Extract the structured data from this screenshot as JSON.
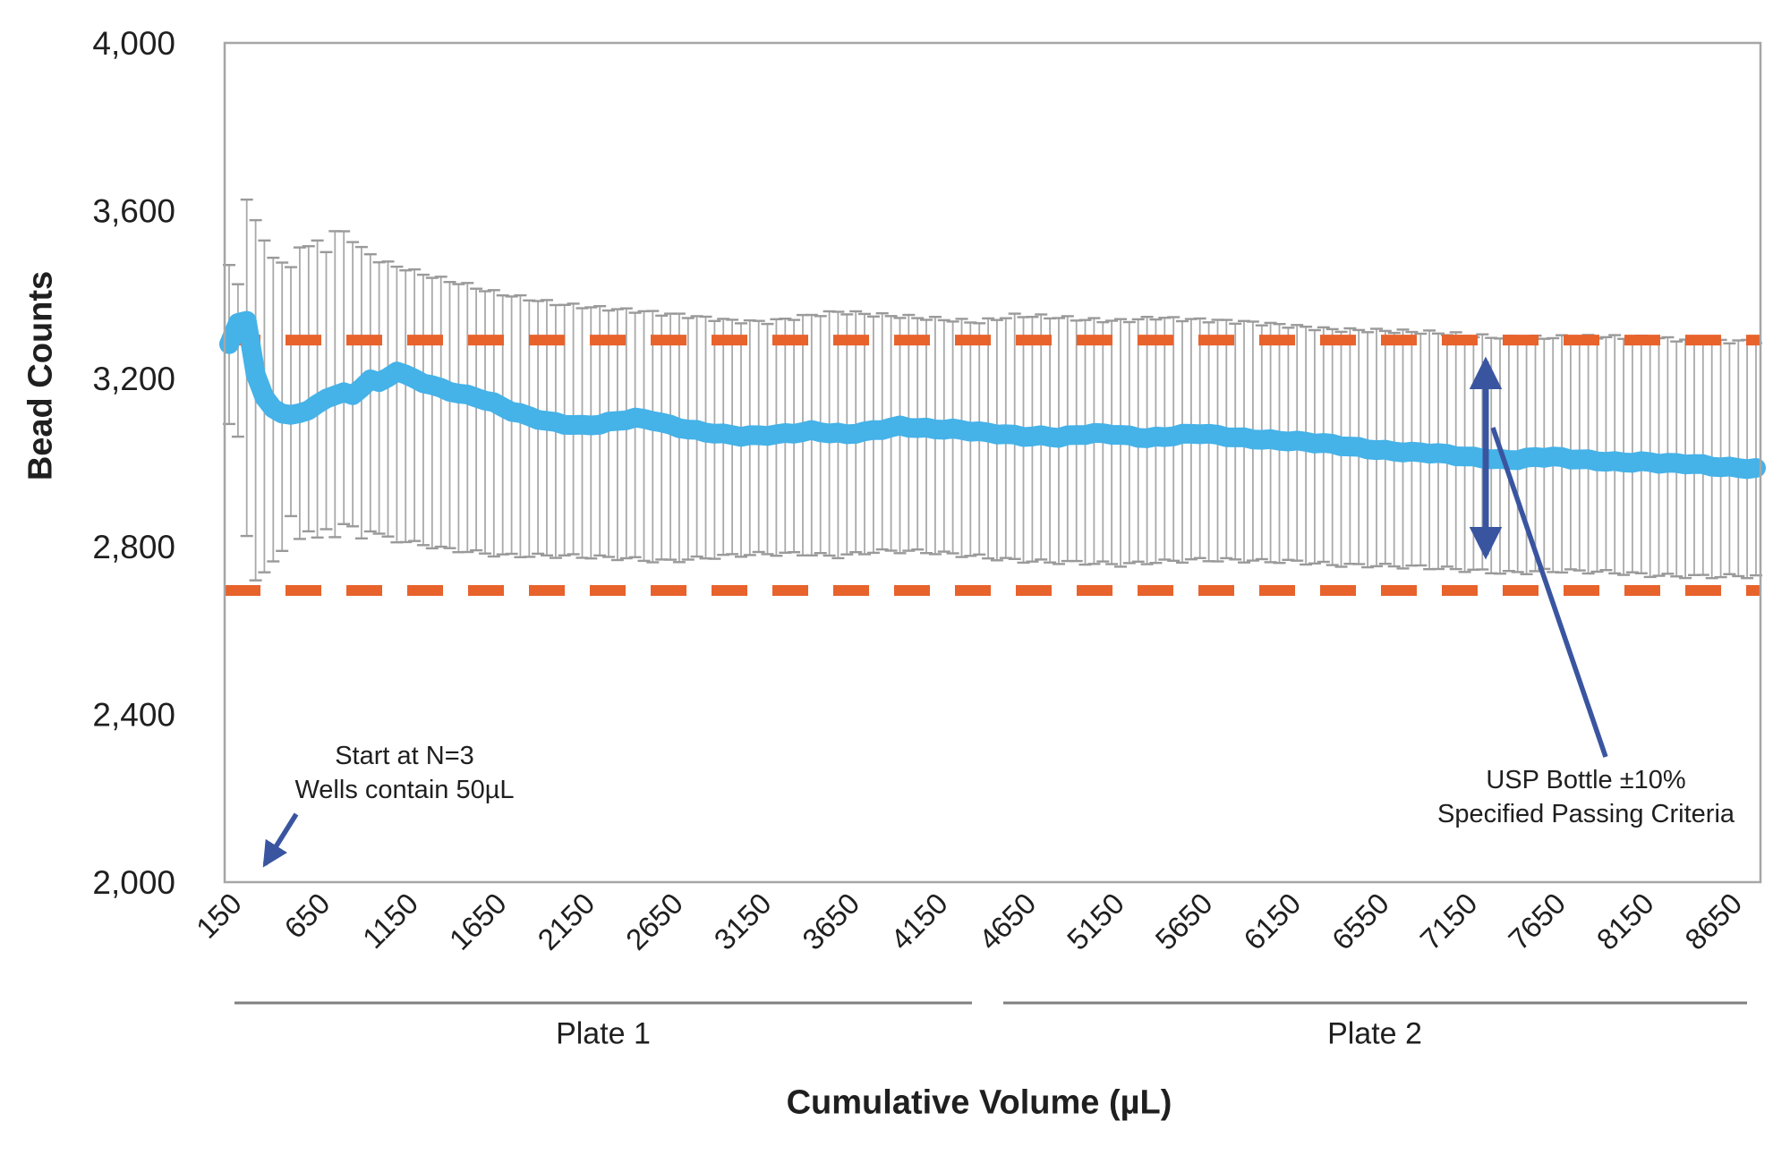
{
  "annotations": {
    "start_note_line1": "Start at N=3",
    "start_note_line2": "Wells contain 50µL",
    "usp_note_line1": "USP Bottle ±10%",
    "usp_note_line2": "Specified Passing Criteria"
  },
  "plates": {
    "plate1": "Plate 1",
    "plate2": "Plate 2"
  },
  "colors": {
    "mean_line": "#45B2E8",
    "limit_line": "#E8622C",
    "error_bar": "#A9A9A9",
    "error_cap": "#9A9A9A",
    "arrow": "#3A55A0",
    "border": "#A6A6A6",
    "text": "#1f1f1f"
  },
  "chart_data": {
    "type": "line",
    "title": "",
    "xlabel": "Cumulative Volume (µL)",
    "ylabel": "Bead Counts",
    "ylim": [
      2000,
      4000
    ],
    "y_tick_values": [
      4000,
      3600,
      3200,
      2800,
      2400,
      2000
    ],
    "y_tick_labels": [
      "4,000",
      "3,600",
      "3,200",
      "2,800",
      "2,400",
      "2,000"
    ],
    "x_tick_labels": [
      "150",
      "650",
      "1150",
      "1650",
      "2150",
      "2650",
      "3150",
      "3650",
      "4150",
      "4650",
      "5150",
      "5650",
      "6150",
      "6550",
      "7150",
      "7650",
      "8150",
      "8650"
    ],
    "x_start": 150,
    "x_step": 50,
    "x_end": 8800,
    "upper_limit": 3292,
    "lower_limit": 2695,
    "grid": false,
    "legend": "none",
    "series": [
      {
        "name": "Mean bead count",
        "anchors": [
          [
            150,
            3282
          ],
          [
            175,
            3252
          ],
          [
            200,
            3330
          ],
          [
            230,
            3355
          ],
          [
            250,
            3338
          ],
          [
            275,
            3285
          ],
          [
            300,
            3210
          ],
          [
            325,
            3172
          ],
          [
            350,
            3152
          ],
          [
            400,
            3128
          ],
          [
            450,
            3118
          ],
          [
            500,
            3112
          ],
          [
            550,
            3118
          ],
          [
            600,
            3128
          ],
          [
            650,
            3140
          ],
          [
            700,
            3152
          ],
          [
            750,
            3163
          ],
          [
            800,
            3168
          ],
          [
            850,
            3158
          ],
          [
            900,
            3178
          ],
          [
            950,
            3198
          ],
          [
            1000,
            3188
          ],
          [
            1050,
            3202
          ],
          [
            1100,
            3218
          ],
          [
            1150,
            3208
          ],
          [
            1250,
            3192
          ],
          [
            1350,
            3178
          ],
          [
            1450,
            3165
          ],
          [
            1550,
            3155
          ],
          [
            1650,
            3140
          ],
          [
            1750,
            3122
          ],
          [
            1850,
            3110
          ],
          [
            1950,
            3100
          ],
          [
            2050,
            3093
          ],
          [
            2150,
            3088
          ],
          [
            2250,
            3090
          ],
          [
            2350,
            3098
          ],
          [
            2450,
            3105
          ],
          [
            2550,
            3102
          ],
          [
            2650,
            3090
          ],
          [
            2750,
            3080
          ],
          [
            2850,
            3072
          ],
          [
            2950,
            3066
          ],
          [
            3050,
            3062
          ],
          [
            3150,
            3064
          ],
          [
            3250,
            3068
          ],
          [
            3350,
            3072
          ],
          [
            3450,
            3076
          ],
          [
            3550,
            3070
          ],
          [
            3650,
            3066
          ],
          [
            3750,
            3072
          ],
          [
            3850,
            3080
          ],
          [
            3950,
            3088
          ],
          [
            4050,
            3084
          ],
          [
            4150,
            3080
          ],
          [
            4250,
            3078
          ],
          [
            4350,
            3074
          ],
          [
            4450,
            3070
          ],
          [
            4550,
            3068
          ],
          [
            4650,
            3064
          ],
          [
            4750,
            3064
          ],
          [
            4850,
            3060
          ],
          [
            4950,
            3064
          ],
          [
            5050,
            3068
          ],
          [
            5150,
            3068
          ],
          [
            5250,
            3064
          ],
          [
            5350,
            3060
          ],
          [
            5450,
            3062
          ],
          [
            5550,
            3066
          ],
          [
            5650,
            3068
          ],
          [
            5750,
            3064
          ],
          [
            5850,
            3060
          ],
          [
            5950,
            3058
          ],
          [
            6050,
            3055
          ],
          [
            6150,
            3052
          ],
          [
            6250,
            3048
          ],
          [
            6350,
            3044
          ],
          [
            6450,
            3040
          ],
          [
            6550,
            3036
          ],
          [
            6650,
            3032
          ],
          [
            6750,
            3028
          ],
          [
            6850,
            3024
          ],
          [
            6950,
            3022
          ],
          [
            7050,
            3018
          ],
          [
            7150,
            3014
          ],
          [
            7250,
            3012
          ],
          [
            7350,
            3008
          ],
          [
            7450,
            3008
          ],
          [
            7550,
            3012
          ],
          [
            7650,
            3012
          ],
          [
            7750,
            3008
          ],
          [
            7850,
            3006
          ],
          [
            7950,
            3004
          ],
          [
            8050,
            3002
          ],
          [
            8150,
            3002
          ],
          [
            8250,
            2998
          ],
          [
            8350,
            2996
          ],
          [
            8450,
            2996
          ],
          [
            8550,
            2992
          ],
          [
            8650,
            2990
          ],
          [
            8800,
            2986
          ]
        ]
      },
      {
        "name": "Upper error bar (+SD)",
        "anchors": [
          [
            150,
            3468
          ],
          [
            200,
            3422
          ],
          [
            250,
            3630
          ],
          [
            300,
            3572
          ],
          [
            350,
            3525
          ],
          [
            400,
            3490
          ],
          [
            450,
            3470
          ],
          [
            500,
            3462
          ],
          [
            550,
            3515
          ],
          [
            600,
            3510
          ],
          [
            650,
            3528
          ],
          [
            700,
            3506
          ],
          [
            750,
            3548
          ],
          [
            800,
            3553
          ],
          [
            850,
            3532
          ],
          [
            900,
            3512
          ],
          [
            950,
            3500
          ],
          [
            1000,
            3484
          ],
          [
            1100,
            3470
          ],
          [
            1200,
            3456
          ],
          [
            1300,
            3442
          ],
          [
            1400,
            3430
          ],
          [
            1500,
            3420
          ],
          [
            1600,
            3408
          ],
          [
            1700,
            3400
          ],
          [
            1800,
            3394
          ],
          [
            1900,
            3388
          ],
          [
            2000,
            3382
          ],
          [
            2200,
            3372
          ],
          [
            2400,
            3362
          ],
          [
            2600,
            3352
          ],
          [
            2800,
            3346
          ],
          [
            3000,
            3340
          ],
          [
            3200,
            3338
          ],
          [
            3400,
            3348
          ],
          [
            3600,
            3356
          ],
          [
            3800,
            3350
          ],
          [
            4000,
            3348
          ],
          [
            4200,
            3344
          ],
          [
            4400,
            3336
          ],
          [
            4600,
            3348
          ],
          [
            4800,
            3344
          ],
          [
            5000,
            3340
          ],
          [
            5200,
            3340
          ],
          [
            5400,
            3348
          ],
          [
            5600,
            3340
          ],
          [
            5800,
            3334
          ],
          [
            6000,
            3330
          ],
          [
            6200,
            3326
          ],
          [
            6400,
            3320
          ],
          [
            6600,
            3316
          ],
          [
            6800,
            3310
          ],
          [
            7000,
            3306
          ],
          [
            7200,
            3302
          ],
          [
            7400,
            3300
          ],
          [
            7600,
            3300
          ],
          [
            7800,
            3298
          ],
          [
            8000,
            3296
          ],
          [
            8200,
            3296
          ],
          [
            8400,
            3294
          ],
          [
            8600,
            3292
          ],
          [
            8800,
            3290
          ]
        ]
      },
      {
        "name": "Lower error bar (-SD)",
        "anchors": [
          [
            150,
            3085
          ],
          [
            200,
            3062
          ],
          [
            250,
            2825
          ],
          [
            300,
            2712
          ],
          [
            350,
            2735
          ],
          [
            400,
            2768
          ],
          [
            450,
            2788
          ],
          [
            500,
            2868
          ],
          [
            550,
            2822
          ],
          [
            600,
            2842
          ],
          [
            650,
            2820
          ],
          [
            700,
            2842
          ],
          [
            750,
            2830
          ],
          [
            800,
            2856
          ],
          [
            850,
            2845
          ],
          [
            900,
            2822
          ],
          [
            950,
            2840
          ],
          [
            1000,
            2826
          ],
          [
            1100,
            2812
          ],
          [
            1200,
            2805
          ],
          [
            1300,
            2798
          ],
          [
            1400,
            2792
          ],
          [
            1500,
            2790
          ],
          [
            1600,
            2786
          ],
          [
            1700,
            2782
          ],
          [
            1800,
            2780
          ],
          [
            1900,
            2778
          ],
          [
            2000,
            2776
          ],
          [
            2200,
            2772
          ],
          [
            2400,
            2772
          ],
          [
            2600,
            2768
          ],
          [
            2800,
            2772
          ],
          [
            3000,
            2776
          ],
          [
            3200,
            2780
          ],
          [
            3400,
            2784
          ],
          [
            3600,
            2780
          ],
          [
            3800,
            2788
          ],
          [
            4000,
            2786
          ],
          [
            4200,
            2782
          ],
          [
            4400,
            2778
          ],
          [
            4600,
            2770
          ],
          [
            4800,
            2762
          ],
          [
            5000,
            2758
          ],
          [
            5200,
            2756
          ],
          [
            5400,
            2766
          ],
          [
            5600,
            2770
          ],
          [
            5800,
            2766
          ],
          [
            6000,
            2762
          ],
          [
            6200,
            2764
          ],
          [
            6400,
            2760
          ],
          [
            6600,
            2756
          ],
          [
            6800,
            2750
          ],
          [
            7000,
            2746
          ],
          [
            7200,
            2744
          ],
          [
            7400,
            2740
          ],
          [
            7600,
            2742
          ],
          [
            7800,
            2738
          ],
          [
            8000,
            2736
          ],
          [
            8200,
            2734
          ],
          [
            8400,
            2732
          ],
          [
            8600,
            2728
          ],
          [
            8800,
            2726
          ]
        ]
      }
    ]
  }
}
